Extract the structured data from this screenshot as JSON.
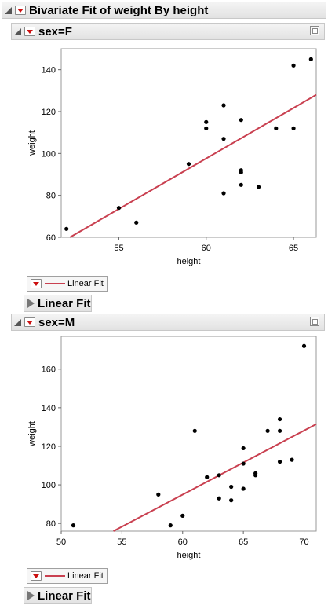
{
  "report": {
    "title": "Bivariate Fit of weight By height"
  },
  "groups": [
    {
      "id": "f",
      "header": "sex=F",
      "legend_label": "Linear Fit",
      "fit_label": "Linear Fit"
    },
    {
      "id": "m",
      "header": "sex=M",
      "legend_label": "Linear Fit",
      "fit_label": "Linear Fit"
    }
  ],
  "colors": {
    "points": "#000000",
    "fit_line": "#c94050",
    "frame": "#999999"
  },
  "icons": {
    "disclosure": "disclosure-triangle-icon",
    "menu": "red-triangle-menu-icon",
    "corner": "window-icon"
  },
  "chart_data": [
    {
      "type": "scatter",
      "title": "sex=F",
      "xlabel": "height",
      "ylabel": "weight",
      "xlim": [
        51.7,
        66.3
      ],
      "ylim": [
        60,
        150
      ],
      "xticks": [
        55,
        60,
        65
      ],
      "yticks": [
        60,
        80,
        100,
        120,
        140
      ],
      "points": [
        [
          52,
          64
        ],
        [
          55,
          74
        ],
        [
          56,
          67
        ],
        [
          59,
          95
        ],
        [
          60,
          112
        ],
        [
          60,
          115
        ],
        [
          61,
          81
        ],
        [
          61,
          107
        ],
        [
          61,
          123
        ],
        [
          62,
          85
        ],
        [
          62,
          91
        ],
        [
          62,
          92
        ],
        [
          62,
          116
        ],
        [
          63,
          84
        ],
        [
          64,
          112
        ],
        [
          65,
          112
        ],
        [
          65,
          142
        ],
        [
          66,
          145
        ]
      ],
      "fit_line": [
        [
          52.2,
          60
        ],
        [
          66.3,
          128
        ]
      ],
      "fit_label": "Linear Fit"
    },
    {
      "type": "scatter",
      "title": "sex=M",
      "xlabel": "height",
      "ylabel": "weight",
      "xlim": [
        50,
        71
      ],
      "ylim": [
        76,
        177
      ],
      "xticks": [
        50,
        55,
        60,
        65,
        70
      ],
      "yticks": [
        80,
        100,
        120,
        140,
        160
      ],
      "points": [
        [
          51,
          79
        ],
        [
          58,
          95
        ],
        [
          59,
          79
        ],
        [
          60,
          84
        ],
        [
          61,
          128
        ],
        [
          62,
          104
        ],
        [
          63,
          93
        ],
        [
          63,
          105
        ],
        [
          64,
          92
        ],
        [
          64,
          99
        ],
        [
          65,
          98
        ],
        [
          65,
          111
        ],
        [
          65,
          119
        ],
        [
          66,
          105
        ],
        [
          66,
          106
        ],
        [
          67,
          128
        ],
        [
          68,
          112
        ],
        [
          68,
          128
        ],
        [
          68,
          134
        ],
        [
          69,
          113
        ],
        [
          70,
          172
        ]
      ],
      "fit_line": [
        [
          54.3,
          76
        ],
        [
          71,
          131.5
        ]
      ],
      "fit_label": "Linear Fit"
    }
  ]
}
